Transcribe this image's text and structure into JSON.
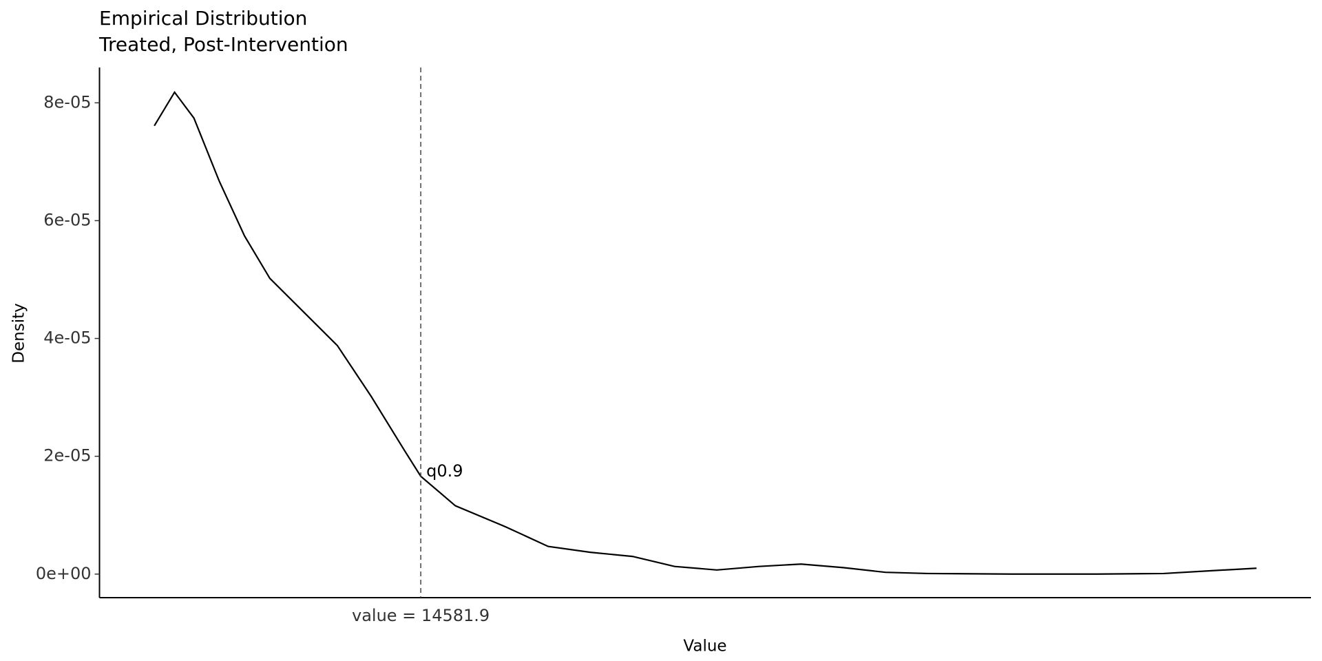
{
  "chart_data": {
    "type": "line",
    "title": "Empirical Distribution",
    "subtitle": "Treated, Post-Intervention",
    "x_label": "Value",
    "y_label": "Density",
    "x": [
      0,
      1108,
      2169,
      3554,
      4938,
      6323,
      8169,
      10015,
      11861,
      13707,
      14582,
      16475,
      19244,
      21552,
      23860,
      26167,
      28475,
      30782,
      33090,
      35397,
      37705,
      40012,
      42320,
      46935,
      51550,
      55242,
      58011,
      60318
    ],
    "series": [
      {
        "color": "#000000",
        "values": [
          7.61e-05,
          8.18e-05,
          7.74e-05,
          6.67e-05,
          5.74e-05,
          5.02e-05,
          4.45e-05,
          3.88e-05,
          3.02e-05,
          2.09e-05,
          1.66e-05,
          1.16e-05,
          8e-06,
          4.7e-06,
          3.7e-06,
          3e-06,
          1.3e-06,
          7e-07,
          1.3e-06,
          1.7e-06,
          1.1e-06,
          3e-07,
          1e-07,
          0,
          0,
          1e-07,
          6e-07,
          1e-06
        ]
      }
    ],
    "xlim": [
      -3000,
      63300
    ],
    "ylim": [
      -4e-06,
      8.6e-05
    ],
    "yticks": [
      {
        "value": 0,
        "label": "0e+00"
      },
      {
        "value": 2e-05,
        "label": "2e-05"
      },
      {
        "value": 4e-05,
        "label": "4e-05"
      },
      {
        "value": 6e-05,
        "label": "6e-05"
      },
      {
        "value": 8e-05,
        "label": "8e-05"
      }
    ],
    "vline": {
      "value": 14581.9,
      "label": "value = 14581.9",
      "annotation": "q0.9"
    },
    "grid": false
  }
}
